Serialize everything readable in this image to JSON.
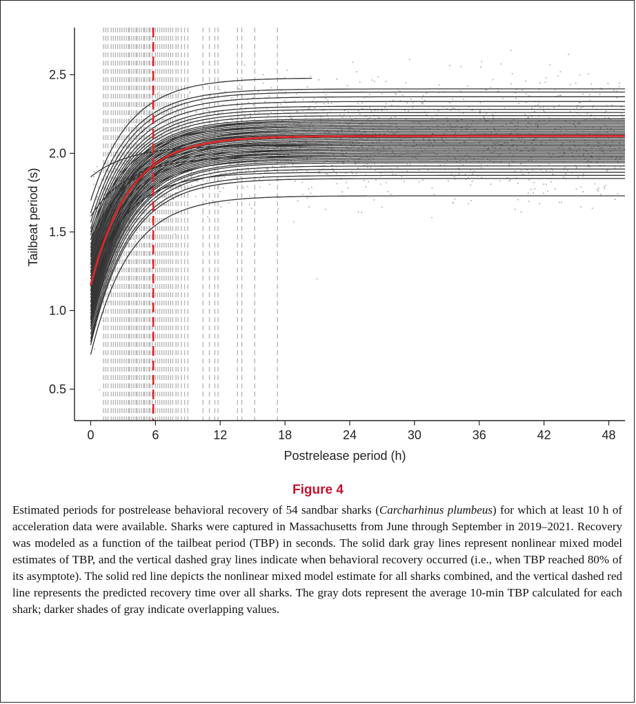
{
  "figure": {
    "title": "Figure 4",
    "caption_parts": [
      {
        "text": "Estimated periods for postrelease behavioral recovery of 54 sandbar sharks (",
        "italic": false
      },
      {
        "text": "Carcharhinus plumbeus",
        "italic": true
      },
      {
        "text": ") for which at least 10 h of acceleration data were available. Sharks were captured in Massachusetts from June through September in 2019–2021. Recovery was modeled as a function of the tailbeat period (TBP) in seconds. The solid dark gray lines represent nonlinear mixed model estimates of TBP, and the vertical dashed gray lines indicate when behavioral recovery occurred (i.e., when TBP reached 80% of its asymptote). The solid red line depicts the nonlinear mixed model estimate for all sharks combined, and the vertical dashed red line represents the predicted recovery time over all sharks. The gray dots represent the average 10-min TBP calculated for each shark; darker shades of gray indicate overlapping values.",
        "italic": false
      }
    ]
  },
  "chart_data": {
    "type": "line",
    "xlabel": "Postrelease period (h)",
    "ylabel": "Tailbeat period (s)",
    "xlim": [
      -1.5,
      49.5
    ],
    "ylim": [
      0.3,
      2.8
    ],
    "x_ticks": [
      0,
      6,
      12,
      18,
      24,
      30,
      36,
      42,
      48
    ],
    "y_ticks": [
      0.5,
      1.0,
      1.5,
      2.0,
      2.5
    ],
    "y_tick_labels": [
      "0.5",
      "1.0",
      "1.5",
      "2.0",
      "2.5"
    ],
    "grid": false,
    "colors": {
      "individual_fit": "#333333",
      "population_fit": "#d62728",
      "recovery_line_individual": "#b5b5b5",
      "recovery_line_population": "#d62728",
      "points": "#777777"
    },
    "population_fit": {
      "name": "All sharks combined",
      "start": 1.16,
      "asymptote": 2.11,
      "recovery_time_h": 5.8
    },
    "individual_fits": [
      {
        "start": 0.72,
        "asymptote": 1.73
      },
      {
        "start": 0.78,
        "asymptote": 1.84
      },
      {
        "start": 0.8,
        "asymptote": 1.86
      },
      {
        "start": 0.82,
        "asymptote": 1.9
      },
      {
        "start": 0.85,
        "asymptote": 1.92
      },
      {
        "start": 0.88,
        "asymptote": 1.94
      },
      {
        "start": 0.9,
        "asymptote": 1.95
      },
      {
        "start": 0.92,
        "asymptote": 1.97
      },
      {
        "start": 0.94,
        "asymptote": 1.98
      },
      {
        "start": 0.96,
        "asymptote": 1.99
      },
      {
        "start": 0.98,
        "asymptote": 2.0
      },
      {
        "start": 1.0,
        "asymptote": 2.01
      },
      {
        "start": 1.02,
        "asymptote": 2.02
      },
      {
        "start": 1.03,
        "asymptote": 2.03
      },
      {
        "start": 1.05,
        "asymptote": 2.04
      },
      {
        "start": 1.06,
        "asymptote": 2.05
      },
      {
        "start": 1.08,
        "asymptote": 2.06
      },
      {
        "start": 1.1,
        "asymptote": 2.07
      },
      {
        "start": 1.12,
        "asymptote": 2.08
      },
      {
        "start": 1.13,
        "asymptote": 2.09
      },
      {
        "start": 1.15,
        "asymptote": 2.1
      },
      {
        "start": 1.17,
        "asymptote": 2.11
      },
      {
        "start": 1.18,
        "asymptote": 2.12
      },
      {
        "start": 1.2,
        "asymptote": 2.13
      },
      {
        "start": 1.22,
        "asymptote": 2.14
      },
      {
        "start": 1.24,
        "asymptote": 2.15
      },
      {
        "start": 1.25,
        "asymptote": 2.16
      },
      {
        "start": 1.27,
        "asymptote": 2.17
      },
      {
        "start": 1.29,
        "asymptote": 2.18
      },
      {
        "start": 1.3,
        "asymptote": 2.19
      },
      {
        "start": 1.32,
        "asymptote": 2.2
      },
      {
        "start": 1.34,
        "asymptote": 2.21
      },
      {
        "start": 1.36,
        "asymptote": 2.22
      },
      {
        "start": 1.38,
        "asymptote": 2.24
      },
      {
        "start": 1.4,
        "asymptote": 2.26
      },
      {
        "start": 1.42,
        "asymptote": 2.28
      },
      {
        "start": 1.45,
        "asymptote": 2.3
      },
      {
        "start": 1.48,
        "asymptote": 2.33
      },
      {
        "start": 1.52,
        "asymptote": 2.36
      },
      {
        "start": 1.56,
        "asymptote": 2.39
      },
      {
        "start": 1.62,
        "asymptote": 2.41
      },
      {
        "start": 1.7,
        "asymptote": 2.48
      },
      {
        "start": 1.85,
        "asymptote": 2.05
      },
      {
        "start": 1.6,
        "asymptote": 1.98
      },
      {
        "start": 1.45,
        "asymptote": 2.02
      },
      {
        "start": 1.25,
        "asymptote": 2.0
      },
      {
        "start": 1.1,
        "asymptote": 1.96
      },
      {
        "start": 0.95,
        "asymptote": 2.08
      },
      {
        "start": 1.35,
        "asymptote": 2.12
      },
      {
        "start": 1.5,
        "asymptote": 2.17
      },
      {
        "start": 1.15,
        "asymptote": 2.21
      },
      {
        "start": 1.0,
        "asymptote": 2.15
      },
      {
        "start": 1.4,
        "asymptote": 2.06
      },
      {
        "start": 1.2,
        "asymptote": 1.88
      }
    ],
    "recovery_times_h": [
      1.2,
      1.4,
      1.6,
      1.9,
      2.1,
      2.3,
      2.5,
      2.7,
      2.9,
      3.1,
      3.3,
      3.5,
      3.6,
      3.8,
      4.0,
      4.2,
      4.3,
      4.5,
      4.7,
      4.9,
      5.0,
      5.2,
      5.4,
      5.5,
      5.7,
      6.0,
      6.2,
      6.4,
      6.6,
      6.8,
      7.0,
      7.2,
      7.4,
      7.6,
      7.9,
      8.1,
      8.4,
      8.7,
      9.0,
      10.4,
      11.0,
      11.5,
      11.8,
      13.6,
      14.0,
      15.2,
      17.3
    ]
  }
}
